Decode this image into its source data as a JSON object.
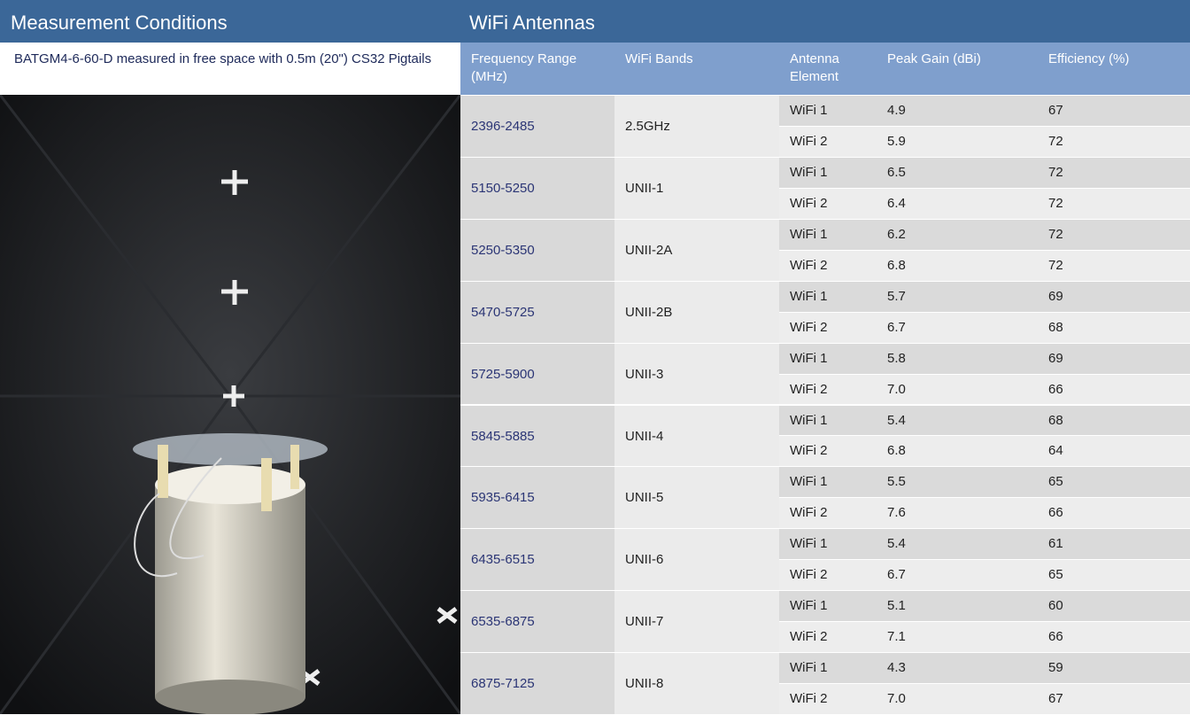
{
  "left": {
    "title": "Measurement Conditions",
    "description": "BATGM4-6-60-D measured in free space with 0.5m (20\") CS32 Pigtails"
  },
  "right": {
    "title": "WiFi Antennas",
    "columns": [
      "Frequency Range (MHz)",
      "WiFi Bands",
      "Antenna Element",
      "Peak Gain (dBi)",
      "Efficiency (%)"
    ],
    "rows": [
      {
        "frequency": "2396-2485",
        "band": "2.5GHz",
        "elements": [
          {
            "element": "WiFi 1",
            "gain": "4.9",
            "efficiency": "67"
          },
          {
            "element": "WiFi 2",
            "gain": "5.9",
            "efficiency": "72"
          }
        ]
      },
      {
        "frequency": "5150-5250",
        "band": "UNII-1",
        "elements": [
          {
            "element": "WiFi 1",
            "gain": "6.5",
            "efficiency": "72"
          },
          {
            "element": "WiFi 2",
            "gain": "6.4",
            "efficiency": "72"
          }
        ]
      },
      {
        "frequency": "5250-5350",
        "band": "UNII-2A",
        "elements": [
          {
            "element": "WiFi 1",
            "gain": "6.2",
            "efficiency": "72"
          },
          {
            "element": "WiFi 2",
            "gain": "6.8",
            "efficiency": "72"
          }
        ]
      },
      {
        "frequency": "5470-5725",
        "band": "UNII-2B",
        "elements": [
          {
            "element": "WiFi 1",
            "gain": "5.7",
            "efficiency": "69"
          },
          {
            "element": "WiFi 2",
            "gain": "6.7",
            "efficiency": "68"
          }
        ]
      },
      {
        "frequency": "5725-5900",
        "band": "UNII-3",
        "elements": [
          {
            "element": "WiFi 1",
            "gain": "5.8",
            "efficiency": "69"
          },
          {
            "element": "WiFi 2",
            "gain": "7.0",
            "efficiency": "66"
          }
        ]
      },
      {
        "frequency": "5845-5885",
        "band": "UNII-4",
        "elements": [
          {
            "element": "WiFi 1",
            "gain": "5.4",
            "efficiency": "68"
          },
          {
            "element": "WiFi 2",
            "gain": "6.8",
            "efficiency": "64"
          }
        ]
      },
      {
        "frequency": "5935-6415",
        "band": "UNII-5",
        "elements": [
          {
            "element": "WiFi 1",
            "gain": "5.5",
            "efficiency": "65"
          },
          {
            "element": "WiFi 2",
            "gain": "7.6",
            "efficiency": "66"
          }
        ]
      },
      {
        "frequency": "6435-6515",
        "band": "UNII-6",
        "elements": [
          {
            "element": "WiFi 1",
            "gain": "5.4",
            "efficiency": "61"
          },
          {
            "element": "WiFi 2",
            "gain": "6.7",
            "efficiency": "65"
          }
        ]
      },
      {
        "frequency": "6535-6875",
        "band": "UNII-7",
        "elements": [
          {
            "element": "WiFi 1",
            "gain": "5.1",
            "efficiency": "60"
          },
          {
            "element": "WiFi 2",
            "gain": "7.1",
            "efficiency": "66"
          }
        ]
      },
      {
        "frequency": "6875-7125",
        "band": "UNII-8",
        "elements": [
          {
            "element": "WiFi 1",
            "gain": "4.3",
            "efficiency": "59"
          },
          {
            "element": "WiFi 2",
            "gain": "7.0",
            "efficiency": "67"
          }
        ]
      }
    ]
  }
}
